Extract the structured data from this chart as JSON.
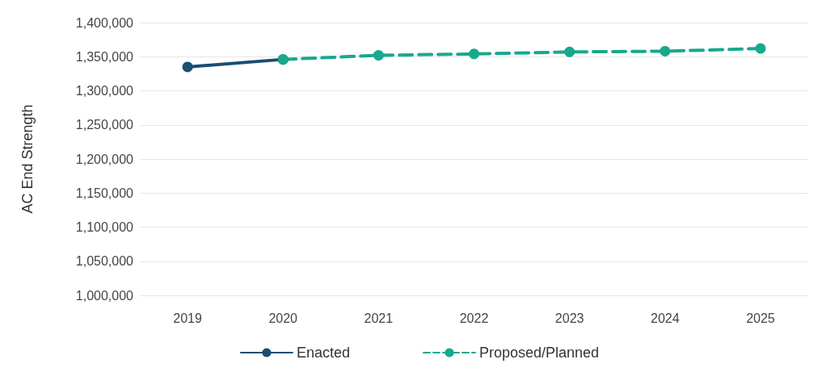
{
  "chart_data": {
    "type": "line",
    "ylabel": "AC End Strength",
    "categories": [
      "2019",
      "2020",
      "2021",
      "2022",
      "2023",
      "2024",
      "2025"
    ],
    "series": [
      {
        "name": "Enacted",
        "color": "#1a4e72",
        "values": [
          1335000,
          1346000,
          null,
          null,
          null,
          null,
          null
        ],
        "line_style": "solid"
      },
      {
        "name": "Proposed/Planned",
        "color": "#16a98e",
        "values": [
          null,
          1346000,
          1352000,
          1354000,
          1357000,
          1358000,
          1362000
        ],
        "line_style": "dashed"
      }
    ],
    "ylim": [
      1000000,
      1400000
    ],
    "yticks": [
      {
        "value": 1000000,
        "label": "1,000,000"
      },
      {
        "value": 1050000,
        "label": "1,050,000"
      },
      {
        "value": 1100000,
        "label": "1,100,000"
      },
      {
        "value": 1150000,
        "label": "1,150,000"
      },
      {
        "value": 1200000,
        "label": "1,200,000"
      },
      {
        "value": 1250000,
        "label": "1,250,000"
      },
      {
        "value": 1300000,
        "label": "1,300,000"
      },
      {
        "value": 1350000,
        "label": "1,350,000"
      },
      {
        "value": 1400000,
        "label": "1,400,000"
      }
    ],
    "grid": "y",
    "legend": "bottom",
    "marker": "circle"
  }
}
